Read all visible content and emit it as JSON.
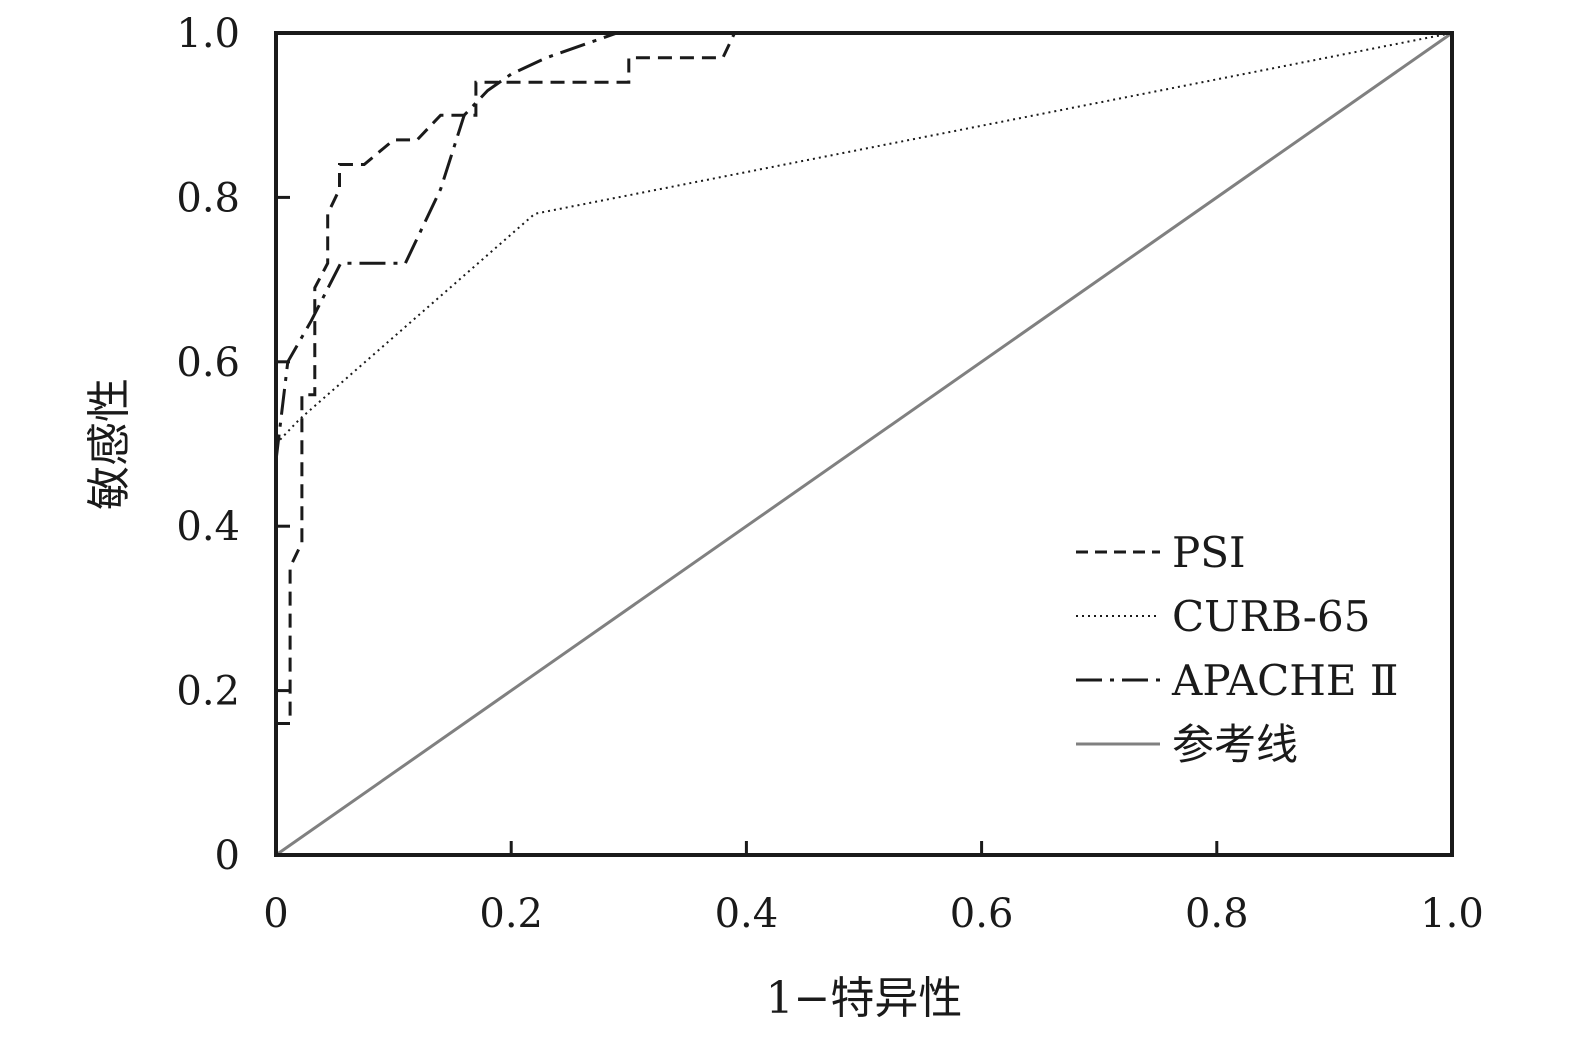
{
  "chart_data": {
    "type": "line",
    "title": "",
    "xlabel": "1−特异性",
    "ylabel": "敏感性",
    "xlim": [
      0,
      1
    ],
    "ylim": [
      0,
      1
    ],
    "x_ticks": [
      0,
      0.2,
      0.4,
      0.6,
      0.8,
      1.0
    ],
    "y_ticks": [
      0,
      0.2,
      0.4,
      0.6,
      0.8,
      1.0
    ],
    "x_tick_labels": [
      "0",
      "0.2",
      "0.4",
      "0.6",
      "0.8",
      "1.0"
    ],
    "y_tick_labels": [
      "0",
      "0.2",
      "0.4",
      "0.6",
      "0.8",
      "1.0"
    ],
    "grid": false,
    "legend_position": "bottom-right",
    "series": [
      {
        "name": "PSI",
        "style": "dashed",
        "color": "#1a1a1a",
        "points": [
          [
            0.0,
            0.16
          ],
          [
            0.012,
            0.16
          ],
          [
            0.012,
            0.2
          ],
          [
            0.012,
            0.35
          ],
          [
            0.022,
            0.38
          ],
          [
            0.022,
            0.56
          ],
          [
            0.033,
            0.56
          ],
          [
            0.033,
            0.69
          ],
          [
            0.044,
            0.72
          ],
          [
            0.044,
            0.78
          ],
          [
            0.054,
            0.81
          ],
          [
            0.054,
            0.84
          ],
          [
            0.075,
            0.84
          ],
          [
            0.1,
            0.87
          ],
          [
            0.12,
            0.87
          ],
          [
            0.14,
            0.9
          ],
          [
            0.17,
            0.9
          ],
          [
            0.17,
            0.94
          ],
          [
            0.3,
            0.94
          ],
          [
            0.3,
            0.97
          ],
          [
            0.38,
            0.97
          ],
          [
            0.39,
            1.0
          ],
          [
            1.0,
            1.0
          ]
        ]
      },
      {
        "name": "CURB-65",
        "style": "dotted",
        "color": "#1a1a1a",
        "points": [
          [
            0.0,
            0.5
          ],
          [
            0.02,
            0.53
          ],
          [
            0.22,
            0.78
          ],
          [
            1.0,
            1.0
          ]
        ]
      },
      {
        "name": "APACHE Ⅱ",
        "style": "dashdot",
        "color": "#1a1a1a",
        "points": [
          [
            0.0,
            0.48
          ],
          [
            0.01,
            0.6
          ],
          [
            0.03,
            0.65
          ],
          [
            0.055,
            0.72
          ],
          [
            0.11,
            0.72
          ],
          [
            0.14,
            0.81
          ],
          [
            0.16,
            0.9
          ],
          [
            0.18,
            0.93
          ],
          [
            0.2,
            0.95
          ],
          [
            0.23,
            0.97
          ],
          [
            0.29,
            1.0
          ],
          [
            1.0,
            1.0
          ]
        ]
      },
      {
        "name": "参考线",
        "style": "solid",
        "color": "#808080",
        "points": [
          [
            0.0,
            0.0
          ],
          [
            1.0,
            1.0
          ]
        ]
      }
    ]
  }
}
